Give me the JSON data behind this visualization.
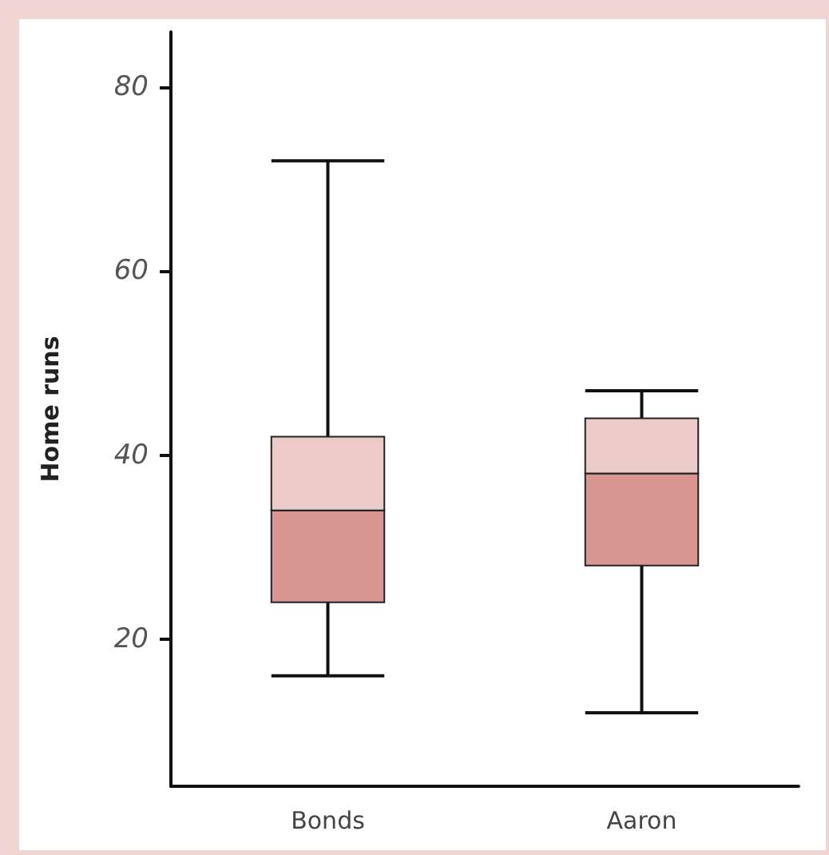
{
  "chart_data": {
    "type": "box",
    "ylabel": "Home runs",
    "categories": [
      "Bonds",
      "Aaron"
    ],
    "series": [
      {
        "color": "#d99590",
        "boxes": [
          {
            "low": 16,
            "q1": 24,
            "median": 34,
            "q3": 42,
            "high": 72
          },
          {
            "low": 12,
            "q1": 28,
            "median": 38,
            "q3": 44,
            "high": 47
          }
        ]
      }
    ],
    "ylim": [
      4,
      86
    ],
    "yticks": [
      20,
      40,
      60,
      80
    ],
    "grid": false
  }
}
